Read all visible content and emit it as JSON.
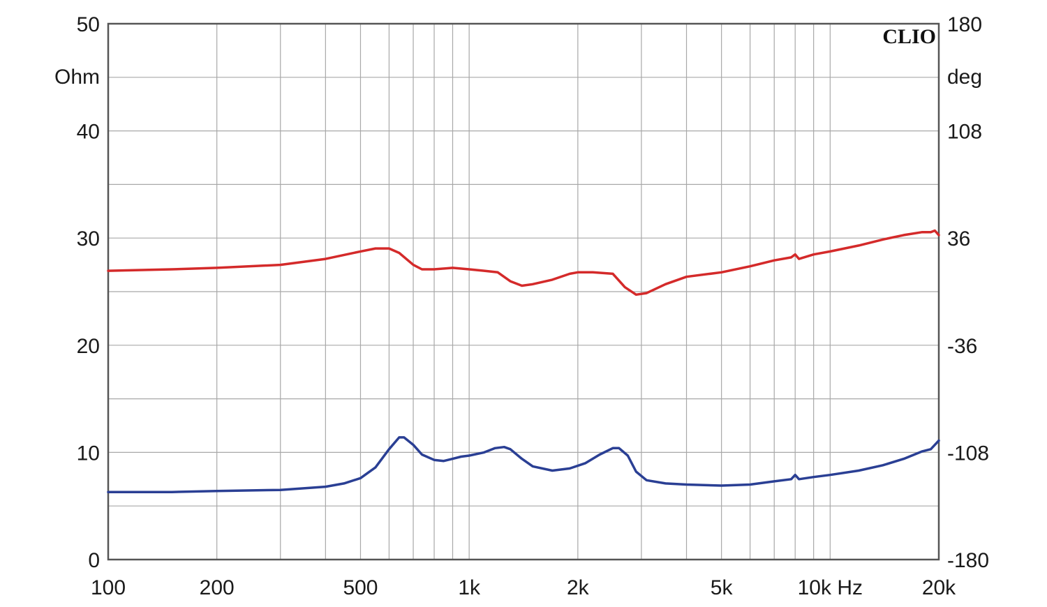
{
  "chart_data": {
    "type": "line",
    "brand": "CLIO",
    "x_scale": "log",
    "x_range": [
      100,
      20000
    ],
    "x_ticks": [
      100,
      200,
      500,
      1000,
      2000,
      5000,
      10000,
      20000
    ],
    "x_tick_labels": [
      "100",
      "200",
      "500",
      "1k",
      "2k",
      "5k",
      "10k Hz",
      "20k"
    ],
    "y_left": {
      "unit": "Ohm",
      "range": [
        0,
        50
      ],
      "ticks": [
        0,
        10,
        20,
        30,
        40,
        50
      ],
      "tick_labels": [
        "0",
        "10",
        "20",
        "30",
        "40",
        "50"
      ]
    },
    "y_right": {
      "unit": "deg",
      "range": [
        -180,
        180
      ],
      "ticks": [
        -180,
        -108,
        -36,
        36,
        108,
        180
      ],
      "tick_labels": [
        "-180",
        "-108",
        "-36",
        "36",
        "108",
        "180"
      ]
    },
    "grid": true,
    "series": [
      {
        "color": "#2a3f94",
        "axis": "left",
        "points": [
          [
            100,
            6.3
          ],
          [
            150,
            6.3
          ],
          [
            200,
            6.4
          ],
          [
            300,
            6.5
          ],
          [
            400,
            6.8
          ],
          [
            450,
            7.1
          ],
          [
            500,
            7.6
          ],
          [
            550,
            8.6
          ],
          [
            600,
            10.3
          ],
          [
            640,
            11.4
          ],
          [
            660,
            11.4
          ],
          [
            700,
            10.7
          ],
          [
            740,
            9.8
          ],
          [
            800,
            9.3
          ],
          [
            850,
            9.2
          ],
          [
            900,
            9.4
          ],
          [
            950,
            9.6
          ],
          [
            1000,
            9.7
          ],
          [
            1100,
            10.0
          ],
          [
            1180,
            10.4
          ],
          [
            1250,
            10.5
          ],
          [
            1300,
            10.3
          ],
          [
            1400,
            9.4
          ],
          [
            1500,
            8.7
          ],
          [
            1700,
            8.3
          ],
          [
            1900,
            8.5
          ],
          [
            2100,
            9.0
          ],
          [
            2300,
            9.8
          ],
          [
            2500,
            10.4
          ],
          [
            2600,
            10.4
          ],
          [
            2750,
            9.7
          ],
          [
            2900,
            8.2
          ],
          [
            3100,
            7.4
          ],
          [
            3500,
            7.1
          ],
          [
            4000,
            7.0
          ],
          [
            5000,
            6.9
          ],
          [
            6000,
            7.0
          ],
          [
            7000,
            7.3
          ],
          [
            7800,
            7.5
          ],
          [
            8000,
            7.9
          ],
          [
            8200,
            7.5
          ],
          [
            9000,
            7.7
          ],
          [
            10000,
            7.9
          ],
          [
            12000,
            8.3
          ],
          [
            14000,
            8.8
          ],
          [
            16000,
            9.4
          ],
          [
            18000,
            10.1
          ],
          [
            19000,
            10.3
          ],
          [
            20000,
            11.1
          ]
        ]
      },
      {
        "color": "#d42a2a",
        "axis": "right",
        "points": [
          [
            100,
            14
          ],
          [
            150,
            15
          ],
          [
            200,
            16
          ],
          [
            300,
            18
          ],
          [
            400,
            22
          ],
          [
            500,
            27
          ],
          [
            550,
            29
          ],
          [
            600,
            29
          ],
          [
            640,
            26
          ],
          [
            700,
            18
          ],
          [
            740,
            15
          ],
          [
            800,
            15
          ],
          [
            900,
            16
          ],
          [
            1000,
            15
          ],
          [
            1100,
            14
          ],
          [
            1200,
            13
          ],
          [
            1300,
            7
          ],
          [
            1400,
            4
          ],
          [
            1500,
            5
          ],
          [
            1700,
            8
          ],
          [
            1900,
            12
          ],
          [
            2000,
            13
          ],
          [
            2200,
            13
          ],
          [
            2500,
            12
          ],
          [
            2700,
            3
          ],
          [
            2900,
            -2
          ],
          [
            3100,
            -1
          ],
          [
            3500,
            5
          ],
          [
            4000,
            10
          ],
          [
            5000,
            13
          ],
          [
            6000,
            17
          ],
          [
            7000,
            21
          ],
          [
            7800,
            23
          ],
          [
            8000,
            25
          ],
          [
            8200,
            22
          ],
          [
            9000,
            25
          ],
          [
            10000,
            27
          ],
          [
            12000,
            31
          ],
          [
            14000,
            35
          ],
          [
            16000,
            38
          ],
          [
            18000,
            40
          ],
          [
            19000,
            40
          ],
          [
            19500,
            41
          ],
          [
            20000,
            38
          ]
        ]
      }
    ]
  }
}
